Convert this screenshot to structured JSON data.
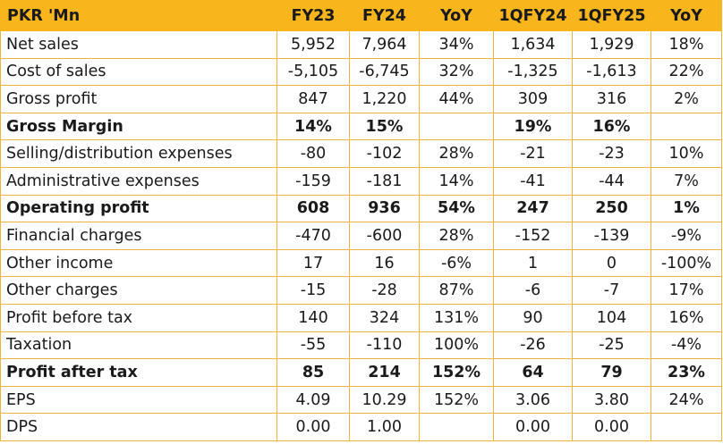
{
  "table": {
    "header": {
      "label": "PKR 'Mn",
      "columns": [
        "FY23",
        "FY24",
        "YoY",
        "1QFY24",
        "1QFY25",
        "YoY"
      ]
    },
    "rows": [
      {
        "label": "Net sales",
        "bold": false,
        "values": [
          "5,952",
          "7,964",
          "34%",
          "1,634",
          "1,929",
          "18%"
        ]
      },
      {
        "label": "Cost of sales",
        "bold": false,
        "values": [
          "-5,105",
          "-6,745",
          "32%",
          "-1,325",
          "-1,613",
          "22%"
        ]
      },
      {
        "label": "Gross profit",
        "bold": false,
        "values": [
          "847",
          "1,220",
          "44%",
          "309",
          "316",
          "2%"
        ]
      },
      {
        "label": "Gross Margin",
        "bold": true,
        "values": [
          "14%",
          "15%",
          "",
          "19%",
          "16%",
          ""
        ]
      },
      {
        "label": "Selling/distribution expenses",
        "bold": false,
        "values": [
          "-80",
          "-102",
          "28%",
          "-21",
          "-23",
          "10%"
        ]
      },
      {
        "label": "Administrative expenses",
        "bold": false,
        "values": [
          "-159",
          "-181",
          "14%",
          "-41",
          "-44",
          "7%"
        ]
      },
      {
        "label": "Operating profit",
        "bold": true,
        "values": [
          "608",
          "936",
          "54%",
          "247",
          "250",
          "1%"
        ]
      },
      {
        "label": "Financial charges",
        "bold": false,
        "values": [
          "-470",
          "-600",
          "28%",
          "-152",
          "-139",
          "-9%"
        ]
      },
      {
        "label": "Other income",
        "bold": false,
        "values": [
          "17",
          "16",
          "-6%",
          "1",
          "0",
          "-100%"
        ]
      },
      {
        "label": "Other charges",
        "bold": false,
        "values": [
          "-15",
          "-28",
          "87%",
          "-6",
          "-7",
          "17%"
        ]
      },
      {
        "label": "Profit before tax",
        "bold": false,
        "values": [
          "140",
          "324",
          "131%",
          "90",
          "104",
          "16%"
        ]
      },
      {
        "label": "Taxation",
        "bold": false,
        "values": [
          "-55",
          "-110",
          "100%",
          "-26",
          "-25",
          "-4%"
        ]
      },
      {
        "label": "Profit after tax",
        "bold": true,
        "values": [
          "85",
          "214",
          "152%",
          "64",
          "79",
          "23%"
        ]
      },
      {
        "label": "EPS",
        "bold": false,
        "values": [
          "4.09",
          "10.29",
          "152%",
          "3.06",
          "3.80",
          "24%"
        ]
      },
      {
        "label": "DPS",
        "bold": false,
        "values": [
          "0.00",
          "1.00",
          "",
          "0.00",
          "0.00",
          ""
        ]
      }
    ]
  },
  "colors": {
    "header_bg": "#f9b51c",
    "grid_line": "#e9b63b",
    "text": "#1a1a1a"
  }
}
